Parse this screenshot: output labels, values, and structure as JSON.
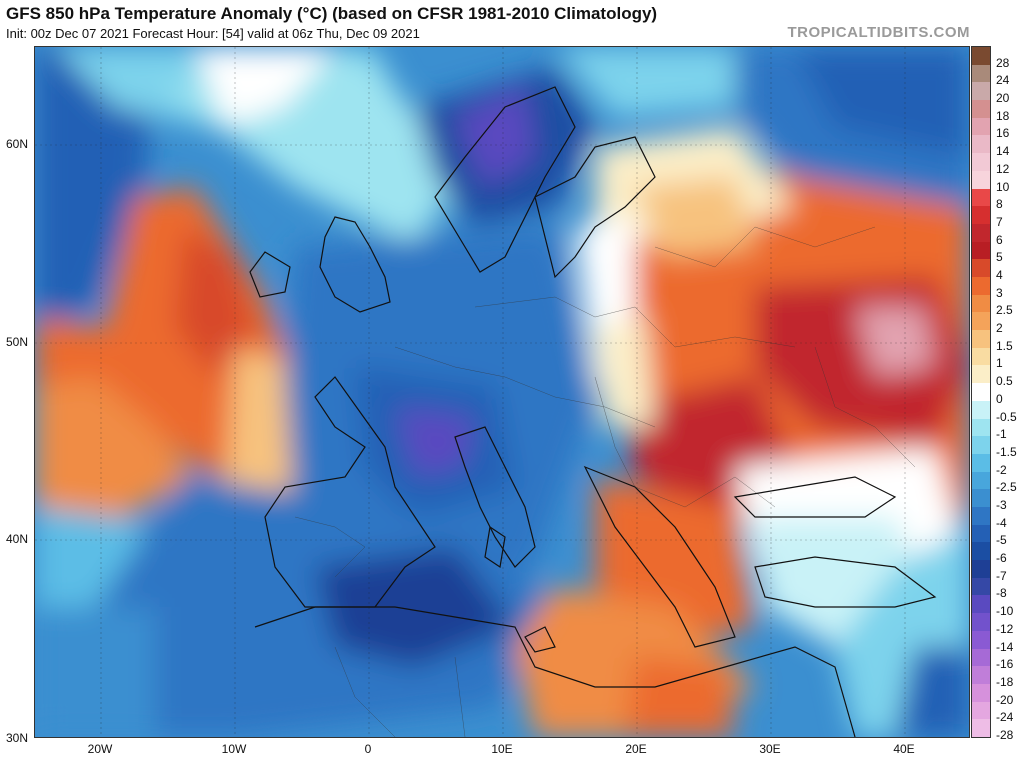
{
  "header": {
    "title": "GFS 850 hPa Temperature Anomaly (°C) (based on CFSR 1981-2010 Climatology)",
    "subtitle": "Init: 00z Dec 07 2021   Forecast Hour: [54]   valid at 06z Thu, Dec 09 2021",
    "brand": "TROPICALTIDBITS.COM"
  },
  "axes": {
    "lat_labels": [
      "60N",
      "50N",
      "40N",
      "30N"
    ],
    "lon_labels": [
      "20W",
      "10W",
      "0",
      "10E",
      "20E",
      "30E",
      "40E"
    ]
  },
  "colorbar": {
    "labels": [
      "28",
      "24",
      "20",
      "18",
      "16",
      "14",
      "12",
      "10",
      "8",
      "7",
      "6",
      "5",
      "4",
      "3",
      "2.5",
      "2",
      "1.5",
      "1",
      "0.5",
      "0",
      "-0.5",
      "-1",
      "-1.5",
      "-2",
      "-2.5",
      "-3",
      "-4",
      "-5",
      "-6",
      "-7",
      "-8",
      "-10",
      "-12",
      "-14",
      "-16",
      "-18",
      "-20",
      "-24",
      "-28"
    ],
    "colors": [
      "#7a4a30",
      "#a98a7a",
      "#c9a9a9",
      "#d49090",
      "#e2a3b0",
      "#eab9c7",
      "#f2c9d5",
      "#f7d4dc",
      "#e94848",
      "#d62f2f",
      "#c1272d",
      "#b81e24",
      "#d84a2a",
      "#ec6a2f",
      "#f08c44",
      "#f4a35a",
      "#f7c27e",
      "#f9dca2",
      "#fbeec8",
      "#ffffff",
      "#c9f2f7",
      "#9ee4f0",
      "#7dd3ec",
      "#5bbde6",
      "#48a6dc",
      "#3b8fd0",
      "#2f76c4",
      "#2460b5",
      "#1b4ea3",
      "#1e3f95",
      "#3548a6",
      "#5a4ac0",
      "#7252cc",
      "#8a5ad3",
      "#a66ad6",
      "#c07ed9",
      "#d691dc",
      "#e4a7e0",
      "#eebde6"
    ]
  }
}
